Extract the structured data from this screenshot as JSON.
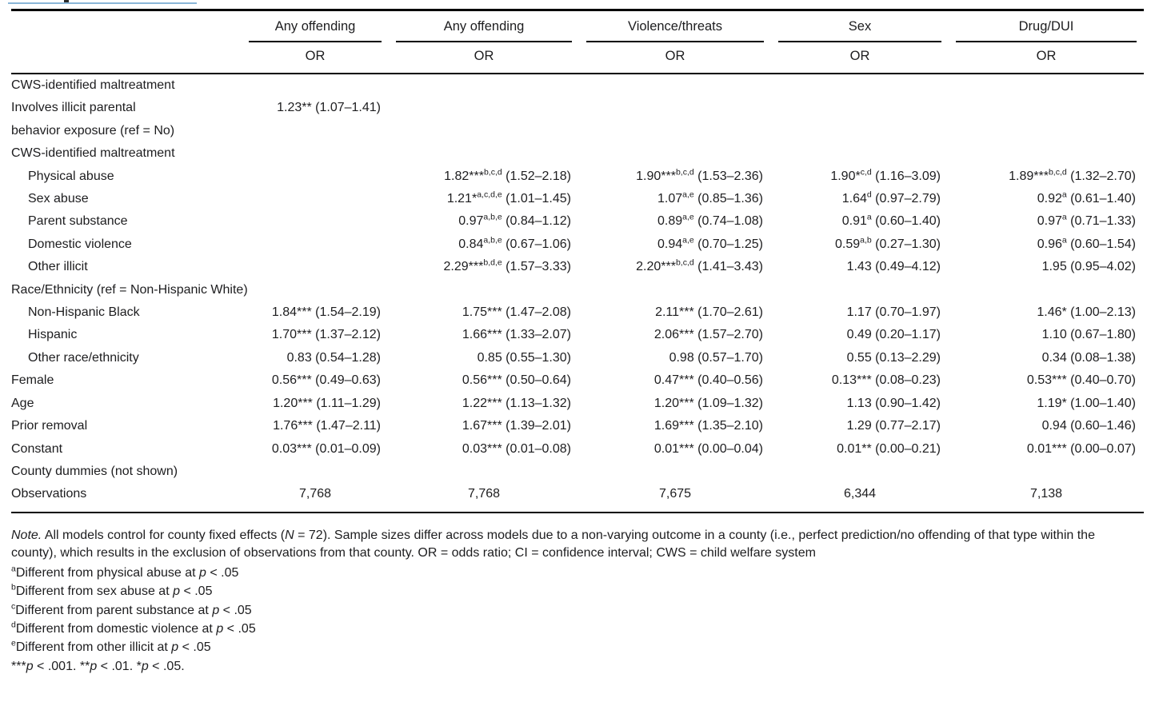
{
  "table": {
    "column_groups": [
      "Any offending",
      "Any offending",
      "Violence/threats",
      "Sex",
      "Drug/DUI"
    ],
    "or_label": "OR",
    "rows": [
      {
        "label": "CWS-identified maltreatment",
        "indent": 0,
        "cells": [
          null,
          null,
          null,
          null,
          null
        ]
      },
      {
        "label": "Involves illicit parental\nbehavior exposure (ref = No)",
        "indent": 0,
        "cells": [
          {
            "or": "1.23**",
            "ci": "(1.07–1.41)"
          },
          null,
          null,
          null,
          null
        ]
      },
      {
        "label": "CWS-identified maltreatment",
        "indent": 0,
        "cells": [
          null,
          null,
          null,
          null,
          null
        ]
      },
      {
        "label": "Physical abuse",
        "indent": 1,
        "cells": [
          null,
          {
            "or": "1.82***",
            "sup": "b,c,d",
            "ci": "(1.52–2.18)"
          },
          {
            "or": "1.90***",
            "sup": "b,c,d",
            "ci": "(1.53–2.36)"
          },
          {
            "or": "1.90*",
            "sup": "c,d",
            "ci": "(1.16–3.09)"
          },
          {
            "or": "1.89***",
            "sup": "b,c,d",
            "ci": "(1.32–2.70)"
          }
        ]
      },
      {
        "label": "Sex abuse",
        "indent": 1,
        "cells": [
          null,
          {
            "or": "1.21*",
            "sup": "a,c,d,e",
            "ci": "(1.01–1.45)"
          },
          {
            "or": "1.07",
            "sup": "a,e",
            "ci": "(0.85–1.36)"
          },
          {
            "or": "1.64",
            "sup": "d",
            "ci": "(0.97–2.79)"
          },
          {
            "or": "0.92",
            "sup": "a",
            "ci": "(0.61–1.40)"
          }
        ]
      },
      {
        "label": "Parent substance",
        "indent": 1,
        "cells": [
          null,
          {
            "or": "0.97",
            "sup": "a,b,e",
            "ci": "(0.84–1.12)"
          },
          {
            "or": "0.89",
            "sup": "a,e",
            "ci": "(0.74–1.08)"
          },
          {
            "or": "0.91",
            "sup": "a",
            "ci": "(0.60–1.40)"
          },
          {
            "or": "0.97",
            "sup": "a",
            "ci": "(0.71–1.33)"
          }
        ]
      },
      {
        "label": "Domestic violence",
        "indent": 1,
        "cells": [
          null,
          {
            "or": "0.84",
            "sup": "a,b,e",
            "ci": "(0.67–1.06)"
          },
          {
            "or": "0.94",
            "sup": "a,e",
            "ci": "(0.70–1.25)"
          },
          {
            "or": "0.59",
            "sup": "a,b",
            "ci": "(0.27–1.30)"
          },
          {
            "or": "0.96",
            "sup": "a",
            "ci": "(0.60–1.54)"
          }
        ]
      },
      {
        "label": "Other illicit",
        "indent": 1,
        "cells": [
          null,
          {
            "or": "2.29***",
            "sup": "b,d,e",
            "ci": "(1.57–3.33)"
          },
          {
            "or": "2.20***",
            "sup": "b,c,d",
            "ci": "(1.41–3.43)"
          },
          {
            "or": "1.43",
            "ci": "(0.49–4.12)"
          },
          {
            "or": "1.95",
            "ci": "(0.95–4.02)"
          }
        ]
      },
      {
        "label": "Race/Ethnicity (ref = Non-Hispanic White)",
        "indent": 0,
        "cells": [
          null,
          null,
          null,
          null,
          null
        ]
      },
      {
        "label": "Non-Hispanic Black",
        "indent": 1,
        "cells": [
          {
            "or": "1.84***",
            "ci": "(1.54–2.19)"
          },
          {
            "or": "1.75***",
            "ci": "(1.47–2.08)"
          },
          {
            "or": "2.11***",
            "ci": "(1.70–2.61)"
          },
          {
            "or": "1.17",
            "ci": "(0.70–1.97)"
          },
          {
            "or": "1.46*",
            "ci": "(1.00–2.13)"
          }
        ]
      },
      {
        "label": "Hispanic",
        "indent": 1,
        "cells": [
          {
            "or": "1.70***",
            "ci": "(1.37–2.12)"
          },
          {
            "or": "1.66***",
            "ci": "(1.33–2.07)"
          },
          {
            "or": "2.06***",
            "ci": "(1.57–2.70)"
          },
          {
            "or": "0.49",
            "ci": "(0.20–1.17)"
          },
          {
            "or": "1.10",
            "ci": "(0.67–1.80)"
          }
        ]
      },
      {
        "label": "Other race/ethnicity",
        "indent": 1,
        "cells": [
          {
            "or": "0.83",
            "ci": "(0.54–1.28)"
          },
          {
            "or": "0.85",
            "ci": "(0.55–1.30)"
          },
          {
            "or": "0.98",
            "ci": "(0.57–1.70)"
          },
          {
            "or": "0.55",
            "ci": "(0.13–2.29)"
          },
          {
            "or": "0.34",
            "ci": "(0.08–1.38)"
          }
        ]
      },
      {
        "label": "Female",
        "indent": 0,
        "cells": [
          {
            "or": "0.56***",
            "ci": "(0.49–0.63)"
          },
          {
            "or": "0.56***",
            "ci": "(0.50–0.64)"
          },
          {
            "or": "0.47***",
            "ci": "(0.40–0.56)"
          },
          {
            "or": "0.13***",
            "ci": "(0.08–0.23)"
          },
          {
            "or": "0.53***",
            "ci": "(0.40–0.70)"
          }
        ]
      },
      {
        "label": "Age",
        "indent": 0,
        "cells": [
          {
            "or": "1.20***",
            "ci": "(1.11–1.29)"
          },
          {
            "or": "1.22***",
            "ci": "(1.13–1.32)"
          },
          {
            "or": "1.20***",
            "ci": "(1.09–1.32)"
          },
          {
            "or": "1.13",
            "ci": "(0.90–1.42)"
          },
          {
            "or": "1.19*",
            "ci": "(1.00–1.40)"
          }
        ]
      },
      {
        "label": "Prior removal",
        "indent": 0,
        "cells": [
          {
            "or": "1.76***",
            "ci": "(1.47–2.11)"
          },
          {
            "or": "1.67***",
            "ci": "(1.39–2.01)"
          },
          {
            "or": "1.69***",
            "ci": "(1.35–2.10)"
          },
          {
            "or": "1.29",
            "ci": "(0.77–2.17)"
          },
          {
            "or": "0.94",
            "ci": "(0.60–1.46)"
          }
        ]
      },
      {
        "label": "Constant",
        "indent": 0,
        "cells": [
          {
            "or": "0.03***",
            "ci": "(0.01–0.09)"
          },
          {
            "or": "0.03***",
            "ci": "(0.01–0.08)"
          },
          {
            "or": "0.01***",
            "ci": "(0.00–0.04)"
          },
          {
            "or": "0.01**",
            "ci": "(0.00–0.21)"
          },
          {
            "or": "0.01***",
            "ci": "(0.00–0.07)"
          }
        ]
      },
      {
        "label": "County dummies (not shown)",
        "indent": 0,
        "cells": [
          null,
          null,
          null,
          null,
          null
        ]
      },
      {
        "label": "Observations",
        "indent": 0,
        "align": "center",
        "cells": [
          {
            "or": "7,768"
          },
          {
            "or": "7,768"
          },
          {
            "or": "7,675"
          },
          {
            "or": "6,344"
          },
          {
            "or": "7,138"
          }
        ]
      }
    ]
  },
  "notes": {
    "note_segments": [
      {
        "i": "Note."
      },
      {
        "t": " All models control for county fixed effects ("
      },
      {
        "i": "N"
      },
      {
        "t": " = 72). Sample sizes differ across models due to a non-varying outcome in a county (i.e., perfect prediction/no offending of that type within the county), which results in the exclusion of observations from that county. OR = odds ratio; CI = confidence interval; CWS = child welfare system"
      }
    ],
    "footnotes": [
      {
        "marker": "a",
        "pre": "Different from physical abuse at ",
        "p": "p",
        "post": " < .05"
      },
      {
        "marker": "b",
        "pre": "Different from sex abuse at ",
        "p": "p",
        "post": " < .05"
      },
      {
        "marker": "c",
        "pre": "Different from parent substance at ",
        "p": "p",
        "post": " < .05"
      },
      {
        "marker": "d",
        "pre": "Different from domestic violence at ",
        "p": "p",
        "post": " < .05"
      },
      {
        "marker": "e",
        "pre": "Different from other illicit at ",
        "p": "p",
        "post": " < .05"
      }
    ],
    "sig_segments": [
      {
        "stars": "***",
        "p": "p",
        "post": " < .001. "
      },
      {
        "stars": "**",
        "p": "p",
        "post": " < .01. "
      },
      {
        "stars": "*",
        "p": "p",
        "post": " < .05."
      }
    ]
  }
}
